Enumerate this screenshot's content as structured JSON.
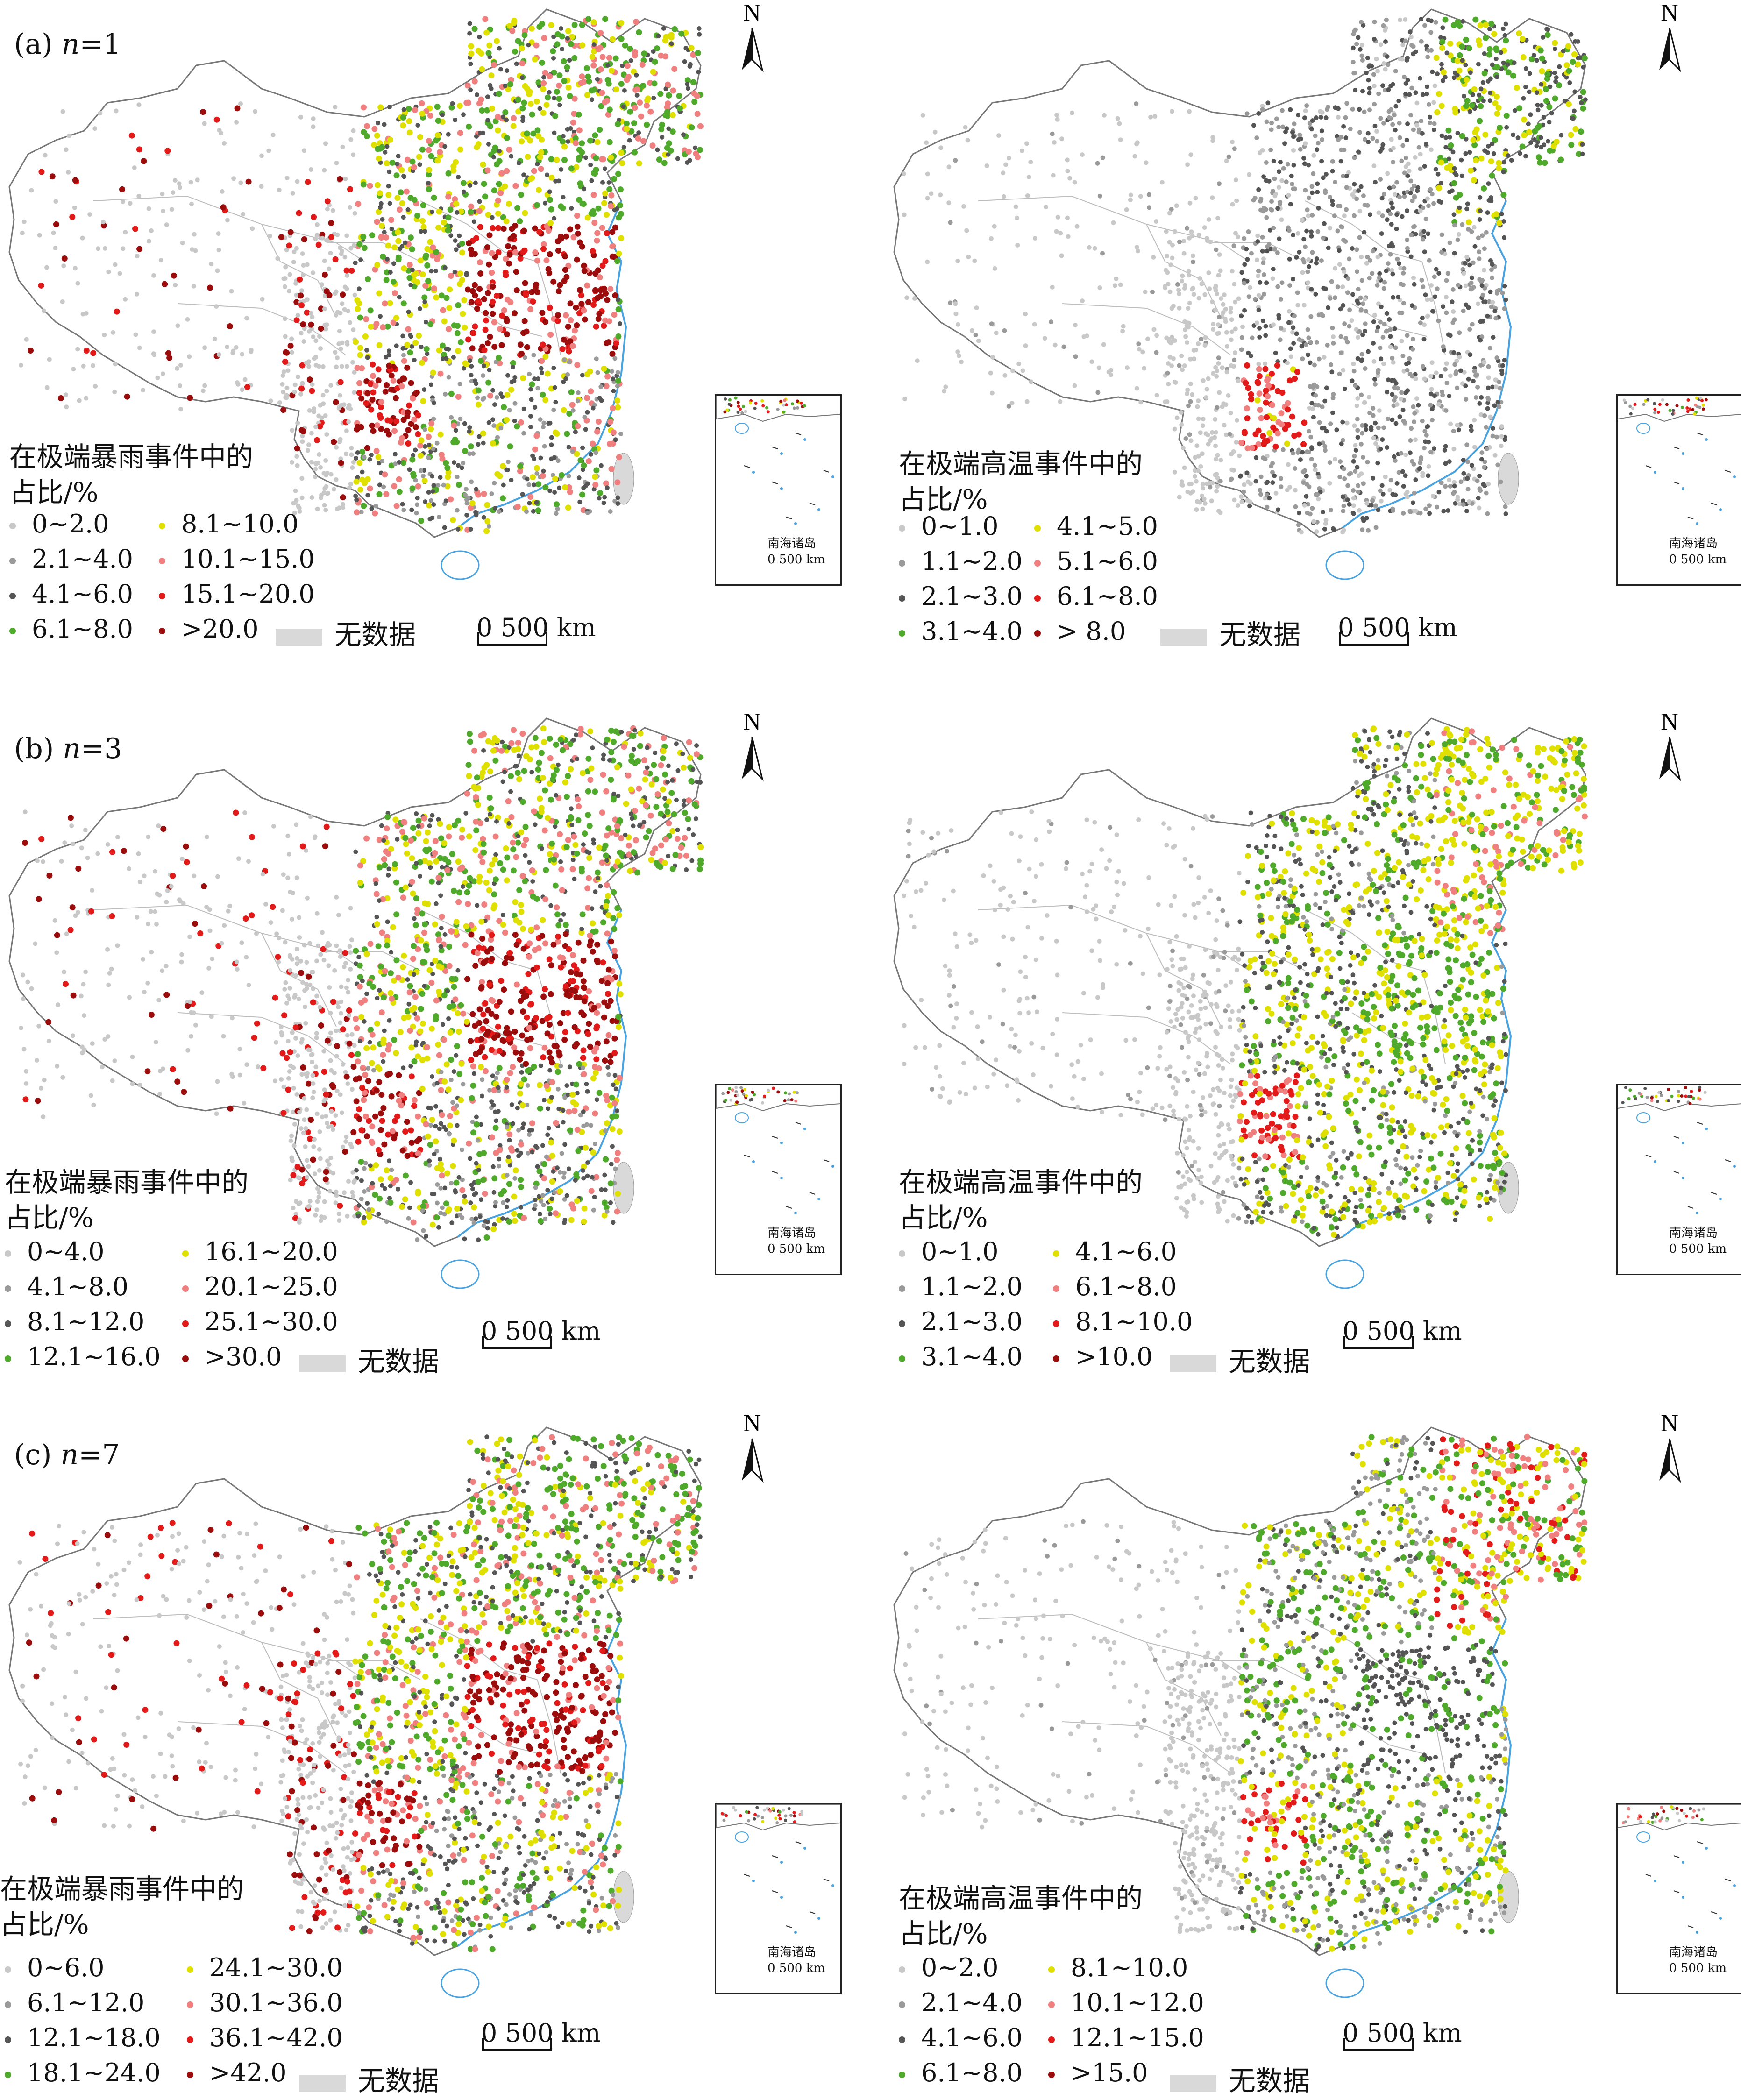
{
  "colors": {
    "c1": "#c8c8c8",
    "c2": "#9a9a9a",
    "c3": "#555555",
    "c4": "#4faa2c",
    "c5": "#e0e000",
    "c6": "#f08080",
    "c7": "#e21a1a",
    "c8": "#9b0d0d",
    "nodata": "#d9d9d9",
    "border": "#bdbdbd",
    "coast": "#4aa3df"
  },
  "common": {
    "north_label": "N",
    "scale_label": "0    500 km",
    "nodata_label": "无数据",
    "inset_label": "南海诸岛",
    "inset_scale": "0   500 km",
    "title_rain": "在极端暴雨事件中的",
    "title_heat": "在极端高温事件中的",
    "title_unit": "占比/%"
  },
  "panels": [
    {
      "tag_prefix": "(a) ",
      "tag_n": "n",
      "tag_suffix": "=1",
      "rain": [
        "0~2.0",
        "2.1~4.0",
        "4.1~6.0",
        "6.1~8.0",
        "8.1~10.0",
        "10.1~15.0",
        "15.1~20.0",
        ">20.0"
      ],
      "heat": [
        "0~1.0",
        "1.1~2.0",
        "2.1~3.0",
        "3.1~4.0",
        "4.1~5.0",
        "5.1~6.0",
        "6.1~8.0",
        "> 8.0"
      ]
    },
    {
      "tag_prefix": "(b) ",
      "tag_n": "n",
      "tag_suffix": "=3",
      "rain": [
        "0~4.0",
        "4.1~8.0",
        "8.1~12.0",
        "12.1~16.0",
        "16.1~20.0",
        "20.1~25.0",
        "25.1~30.0",
        ">30.0"
      ],
      "heat": [
        "0~1.0",
        "1.1~2.0",
        "2.1~3.0",
        "3.1~4.0",
        "4.1~6.0",
        "6.1~8.0",
        "8.1~10.0",
        ">10.0"
      ]
    },
    {
      "tag_prefix": "(c) ",
      "tag_n": "n",
      "tag_suffix": "=7",
      "rain": [
        "0~6.0",
        "6.1~12.0",
        "12.1~18.0",
        "18.1~24.0",
        "24.1~30.0",
        "30.1~36.0",
        "36.1~42.0",
        ">42.0"
      ],
      "heat": [
        "0~2.0",
        "2.1~4.0",
        "4.1~6.0",
        "6.1~8.0",
        "8.1~10.0",
        "10.1~12.0",
        "12.1~15.0",
        ">15.0"
      ]
    }
  ]
}
